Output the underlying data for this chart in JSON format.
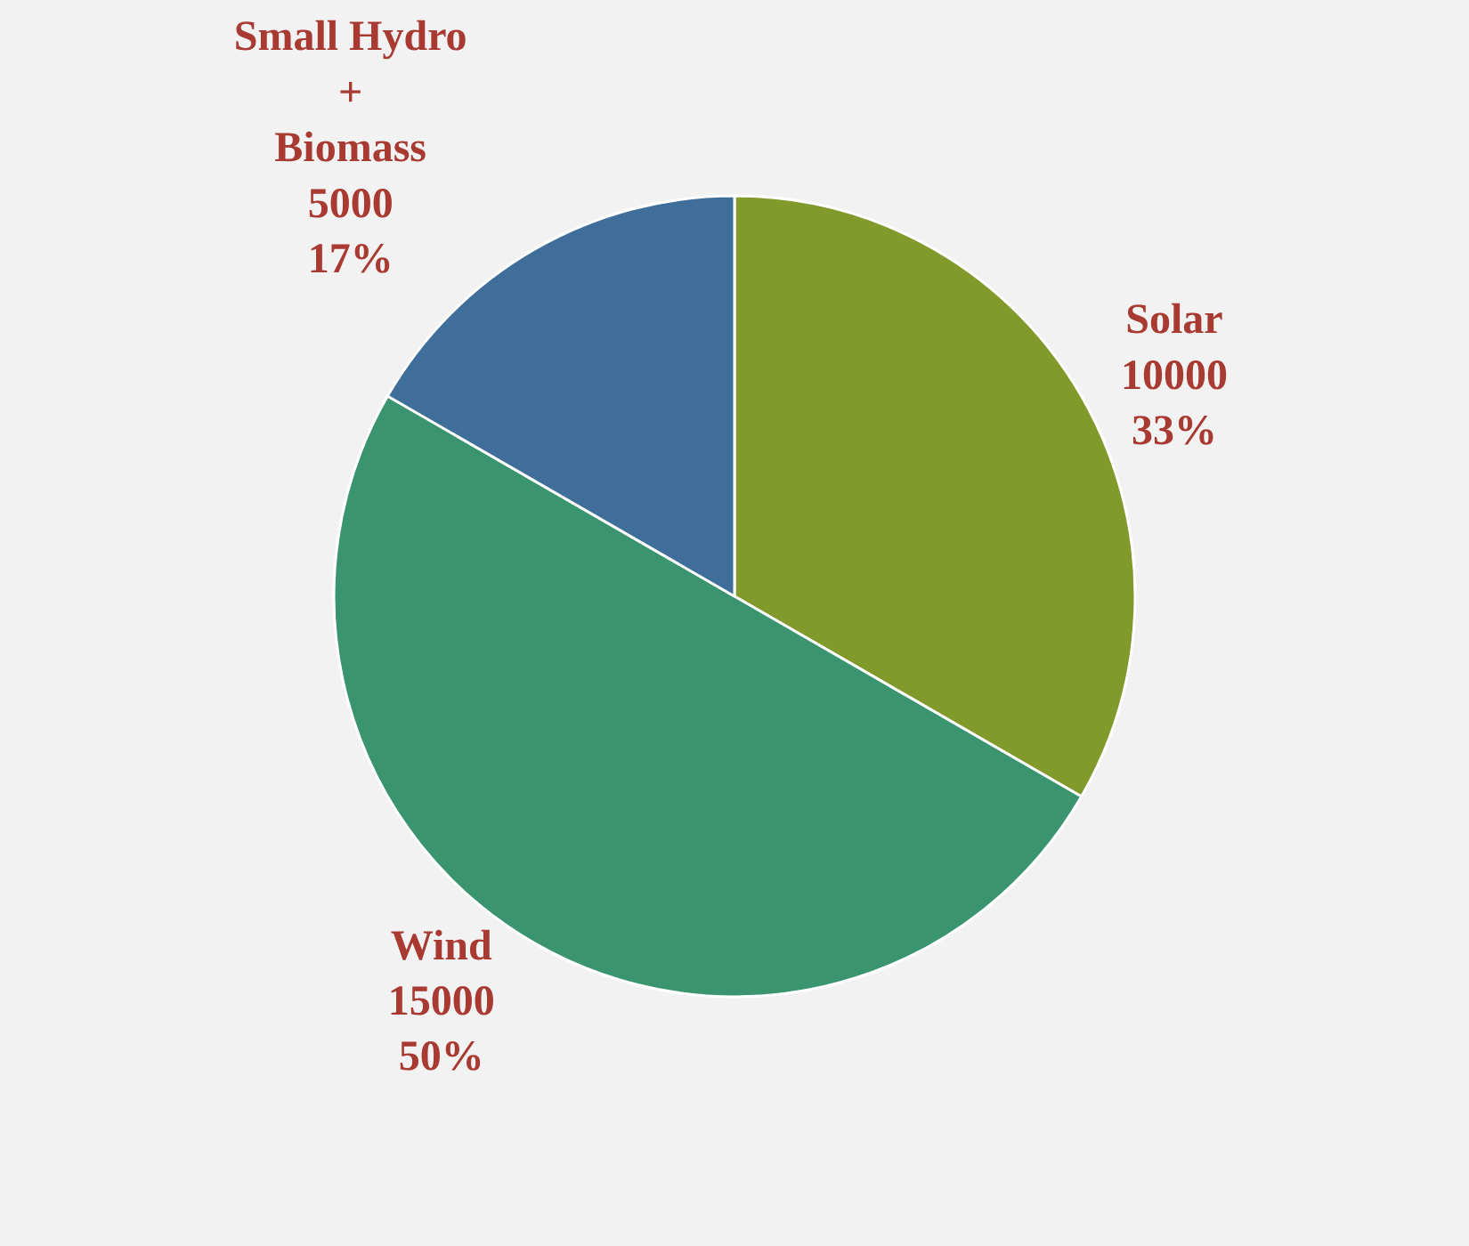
{
  "chart_data": {
    "type": "pie",
    "categories": [
      "Solar",
      "Wind",
      "Small Hydro + Biomass"
    ],
    "values": [
      10000,
      15000,
      5000
    ],
    "colors": [
      "#829a2c",
      "#3a9470",
      "#3f6e9a"
    ],
    "value_labels": [
      "10000\n33%",
      "15000\n50%",
      "5000\n17%"
    ],
    "legend": false
  }
}
